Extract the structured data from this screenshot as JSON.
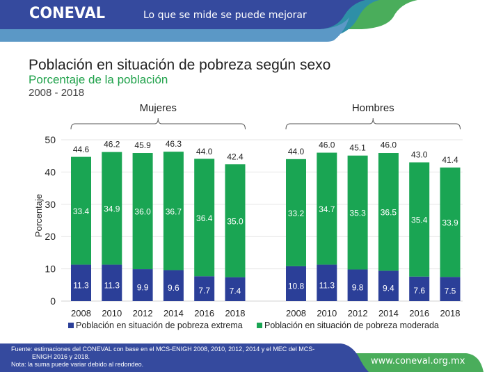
{
  "header": {
    "logo": "CONEVAL",
    "slogan": "Lo que se mide se puede mejorar",
    "colors": {
      "navy": "#354a9e",
      "lightblue": "#5b98c6",
      "teal": "#2e8fa7",
      "green": "#4aad5b"
    }
  },
  "titles": {
    "title": "Población en situación de pobreza según sexo",
    "subtitle": "Porcentaje de la población",
    "years": "2008 - 2018"
  },
  "chart_data": {
    "type": "bar",
    "stacked": true,
    "title": "Población en situación de pobreza según sexo",
    "subtitle": "Porcentaje de la población",
    "ylabel": "Porcentaje",
    "xlabel": "",
    "ylim": [
      0,
      50
    ],
    "yticks": [
      0,
      10,
      20,
      30,
      40,
      50
    ],
    "grid": true,
    "legend_position": "bottom",
    "groups": [
      {
        "name": "Mujeres",
        "categories": [
          "2008",
          "2010",
          "2012",
          "2014",
          "2016",
          "2018"
        ],
        "series": [
          {
            "name": "Población en situación de pobreza extrema",
            "color": "#2b3f98",
            "values": [
              11.3,
              11.3,
              9.9,
              9.6,
              7.7,
              7.4
            ]
          },
          {
            "name": "Población en situación de pobreza moderada",
            "color": "#1aa553",
            "values": [
              33.4,
              34.9,
              36.0,
              36.7,
              36.4,
              35.0
            ]
          }
        ],
        "totals": [
          44.6,
          46.2,
          45.9,
          46.3,
          44.0,
          42.4
        ]
      },
      {
        "name": "Hombres",
        "categories": [
          "2008",
          "2010",
          "2012",
          "2014",
          "2016",
          "2018"
        ],
        "series": [
          {
            "name": "Población en situación de pobreza extrema",
            "color": "#2b3f98",
            "values": [
              10.8,
              11.3,
              9.8,
              9.4,
              7.6,
              7.5
            ]
          },
          {
            "name": "Población en situación de pobreza moderada",
            "color": "#1aa553",
            "values": [
              33.2,
              34.7,
              35.3,
              36.5,
              35.4,
              33.9
            ]
          }
        ],
        "totals": [
          44.0,
          46.0,
          45.1,
          46.0,
          43.0,
          41.4
        ]
      }
    ],
    "legend": [
      {
        "label": "Población en situación de pobreza extrema",
        "color": "#2b3f98"
      },
      {
        "label": "Población en situación de pobreza moderada",
        "color": "#1aa553"
      }
    ]
  },
  "footer": {
    "fuente_line1": "Fuente: estimaciones del CONEVAL con base en el MCS-ENIGH 2008, 2010, 2012, 2014 y el MEC del MCS-",
    "fuente_line2": "ENIGH 2016 y 2018.",
    "nota": "Nota: la suma puede variar debido al redondeo.",
    "url": "www.coneval.org.mx"
  }
}
